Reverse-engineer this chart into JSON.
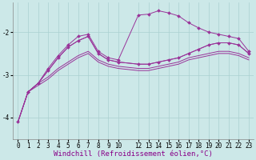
{
  "background_color": "#cce8e8",
  "line_color": "#993399",
  "xlabel": "Windchill (Refroidissement éolien,°C)",
  "xlim": [
    -0.5,
    23.5
  ],
  "ylim": [
    -4.5,
    -1.3
  ],
  "yticks": [
    -4,
    -3,
    -2
  ],
  "xticks": [
    0,
    1,
    2,
    3,
    4,
    5,
    6,
    7,
    8,
    9,
    10,
    12,
    13,
    14,
    15,
    16,
    17,
    18,
    19,
    20,
    21,
    22,
    23
  ],
  "series": [
    {
      "x": [
        0,
        1,
        2,
        3,
        4,
        5,
        6,
        7,
        8,
        9,
        10,
        12,
        13,
        14,
        15,
        16,
        17,
        18,
        19,
        20,
        21,
        22,
        23
      ],
      "y": [
        -4.1,
        -3.4,
        -3.25,
        -3.1,
        -2.9,
        -2.75,
        -2.6,
        -2.5,
        -2.7,
        -2.8,
        -2.85,
        -2.9,
        -2.9,
        -2.85,
        -2.8,
        -2.75,
        -2.65,
        -2.6,
        -2.55,
        -2.5,
        -2.5,
        -2.55,
        -2.65
      ],
      "marker": false
    },
    {
      "x": [
        0,
        1,
        2,
        3,
        4,
        5,
        6,
        7,
        8,
        9,
        10,
        12,
        13,
        14,
        15,
        16,
        17,
        18,
        19,
        20,
        21,
        22,
        23
      ],
      "y": [
        -4.1,
        -3.4,
        -3.2,
        -3.05,
        -2.85,
        -2.7,
        -2.55,
        -2.45,
        -2.65,
        -2.75,
        -2.8,
        -2.85,
        -2.85,
        -2.8,
        -2.75,
        -2.7,
        -2.6,
        -2.55,
        -2.5,
        -2.45,
        -2.45,
        -2.5,
        -2.6
      ],
      "marker": false
    },
    {
      "x": [
        0,
        1,
        2,
        3,
        4,
        5,
        6,
        7,
        8,
        9,
        10,
        12,
        13,
        14,
        15,
        16,
        17,
        18,
        19,
        20,
        21,
        22,
        23
      ],
      "y": [
        -4.1,
        -3.4,
        -3.2,
        -2.9,
        -2.6,
        -2.35,
        -2.2,
        -2.1,
        -2.5,
        -2.65,
        -2.7,
        -2.75,
        -2.75,
        -2.7,
        -2.65,
        -2.6,
        -2.5,
        -2.4,
        -2.3,
        -2.25,
        -2.25,
        -2.3,
        -2.5
      ],
      "marker": true
    },
    {
      "x": [
        1,
        2,
        3,
        4,
        5,
        6,
        7,
        8,
        9,
        10,
        12,
        13,
        14,
        15,
        16,
        17,
        18,
        19,
        20,
        21,
        22,
        23
      ],
      "y": [
        -3.4,
        -3.2,
        -2.85,
        -2.55,
        -2.3,
        -2.1,
        -2.05,
        -2.45,
        -2.6,
        -2.65,
        -1.6,
        -1.58,
        -1.5,
        -1.55,
        -1.62,
        -1.78,
        -1.9,
        -2.0,
        -2.05,
        -2.1,
        -2.15,
        -2.45
      ],
      "marker": true
    },
    {
      "x": [
        0,
        1,
        2,
        3,
        4,
        5,
        6,
        7,
        8,
        9,
        10,
        12,
        13,
        14,
        15,
        16,
        17,
        18,
        19,
        20,
        21,
        22,
        23
      ],
      "y": [
        -4.1,
        -3.4,
        -3.2,
        -2.9,
        -2.6,
        -2.35,
        -2.2,
        -2.1,
        -2.5,
        -2.65,
        -2.7,
        -2.75,
        -2.75,
        -2.7,
        -2.65,
        -2.6,
        -2.5,
        -2.4,
        -2.3,
        -2.25,
        -2.25,
        -2.3,
        -2.5
      ],
      "marker": false
    }
  ],
  "grid_color": "#aad0d0",
  "tick_fontsize": 5.5,
  "xlabel_fontsize": 6.5,
  "figsize": [
    3.2,
    2.0
  ],
  "dpi": 100
}
